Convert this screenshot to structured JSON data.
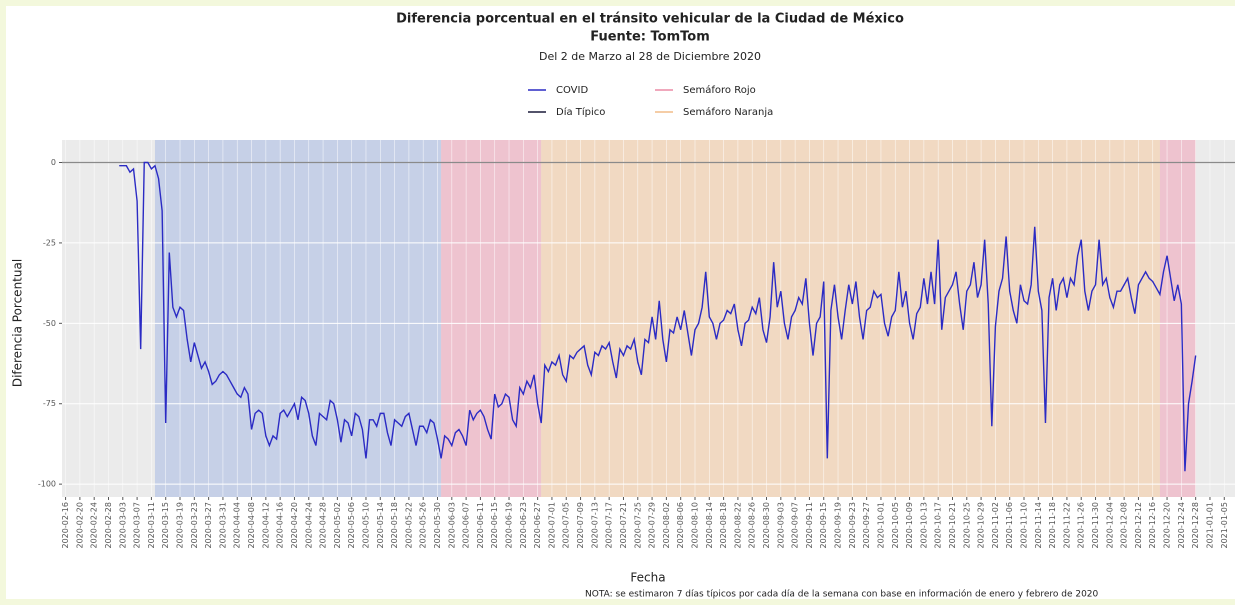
{
  "chart_data": {
    "type": "line",
    "title": "Diferencia porcentual en el tránsito vehicular de la Ciudad de México",
    "subtitle": "Fuente: TomTom",
    "caption": "Del 2 de Marzo al 28 de Diciembre 2020",
    "x_label": "Fecha",
    "y_label": "Diferencia Porcentual",
    "note": "NOTA: se estimaron 7 días típicos por cada día de la semana con base en información de enero y febrero de 2020",
    "xlim": [
      "2020-02-15",
      "2021-01-08"
    ],
    "ylim": [
      -104,
      7
    ],
    "yticks": [
      0,
      -25,
      -50,
      -75,
      -100
    ],
    "xticks": [
      "2020-02-16",
      "2020-02-20",
      "2020-02-24",
      "2020-02-28",
      "2020-03-03",
      "2020-03-07",
      "2020-03-11",
      "2020-03-15",
      "2020-03-19",
      "2020-03-23",
      "2020-03-27",
      "2020-03-31",
      "2020-04-04",
      "2020-04-08",
      "2020-04-12",
      "2020-04-16",
      "2020-04-20",
      "2020-04-24",
      "2020-04-28",
      "2020-05-02",
      "2020-05-06",
      "2020-05-10",
      "2020-05-14",
      "2020-05-18",
      "2020-05-22",
      "2020-05-26",
      "2020-05-30",
      "2020-06-03",
      "2020-06-07",
      "2020-06-11",
      "2020-06-15",
      "2020-06-19",
      "2020-06-23",
      "2020-06-27",
      "2020-07-01",
      "2020-07-05",
      "2020-07-09",
      "2020-07-13",
      "2020-07-17",
      "2020-07-21",
      "2020-07-25",
      "2020-07-29",
      "2020-08-02",
      "2020-08-06",
      "2020-08-10",
      "2020-08-14",
      "2020-08-18",
      "2020-08-22",
      "2020-08-26",
      "2020-08-30",
      "2020-09-03",
      "2020-09-07",
      "2020-09-11",
      "2020-09-15",
      "2020-09-19",
      "2020-09-23",
      "2020-09-27",
      "2020-10-01",
      "2020-10-05",
      "2020-10-09",
      "2020-10-13",
      "2020-10-17",
      "2020-10-21",
      "2020-10-25",
      "2020-10-29",
      "2020-11-02",
      "2020-11-06",
      "2020-11-10",
      "2020-11-14",
      "2020-11-18",
      "2020-11-22",
      "2020-11-26",
      "2020-11-30",
      "2020-12-04",
      "2020-12-08",
      "2020-12-12",
      "2020-12-16",
      "2020-12-20",
      "2020-12-24",
      "2020-12-28",
      "2021-01-01",
      "2021-01-05"
    ],
    "grid": true,
    "shaded_span": {
      "color": "#b9c7e6",
      "start": "2020-03-12",
      "end": "2020-05-31"
    },
    "regions": [
      {
        "name": "Semáforo Rojo",
        "color": "#f0a8bc",
        "spans": [
          [
            "2020-05-31",
            "2020-06-28"
          ],
          [
            "2020-12-18",
            "2020-12-28"
          ]
        ]
      },
      {
        "name": "Semáforo Naranja",
        "color": "#f5cda6",
        "spans": [
          [
            "2020-06-28",
            "2020-12-18"
          ]
        ]
      }
    ],
    "series": [
      {
        "name": "COVID",
        "color": "#2b2bc4",
        "x": [
          "2020-03-02",
          "2020-03-03",
          "2020-03-04",
          "2020-03-05",
          "2020-03-06",
          "2020-03-07",
          "2020-03-08",
          "2020-03-09",
          "2020-03-10",
          "2020-03-11",
          "2020-03-12",
          "2020-03-13",
          "2020-03-14",
          "2020-03-15",
          "2020-03-16",
          "2020-03-17",
          "2020-03-18",
          "2020-03-19",
          "2020-03-20",
          "2020-03-21",
          "2020-03-22",
          "2020-03-23",
          "2020-03-24",
          "2020-03-25",
          "2020-03-26",
          "2020-03-27",
          "2020-03-28",
          "2020-03-29",
          "2020-03-30",
          "2020-03-31",
          "2020-04-01",
          "2020-04-02",
          "2020-04-03",
          "2020-04-04",
          "2020-04-05",
          "2020-04-06",
          "2020-04-07",
          "2020-04-08",
          "2020-04-09",
          "2020-04-10",
          "2020-04-11",
          "2020-04-12",
          "2020-04-13",
          "2020-04-14",
          "2020-04-15",
          "2020-04-16",
          "2020-04-17",
          "2020-04-18",
          "2020-04-19",
          "2020-04-20",
          "2020-04-21",
          "2020-04-22",
          "2020-04-23",
          "2020-04-24",
          "2020-04-25",
          "2020-04-26",
          "2020-04-27",
          "2020-04-28",
          "2020-04-29",
          "2020-04-30",
          "2020-05-01",
          "2020-05-02",
          "2020-05-03",
          "2020-05-04",
          "2020-05-05",
          "2020-05-06",
          "2020-05-07",
          "2020-05-08",
          "2020-05-09",
          "2020-05-10",
          "2020-05-11",
          "2020-05-12",
          "2020-05-13",
          "2020-05-14",
          "2020-05-15",
          "2020-05-16",
          "2020-05-17",
          "2020-05-18",
          "2020-05-19",
          "2020-05-20",
          "2020-05-21",
          "2020-05-22",
          "2020-05-23",
          "2020-05-24",
          "2020-05-25",
          "2020-05-26",
          "2020-05-27",
          "2020-05-28",
          "2020-05-29",
          "2020-05-30",
          "2020-05-31",
          "2020-06-01",
          "2020-06-02",
          "2020-06-03",
          "2020-06-04",
          "2020-06-05",
          "2020-06-06",
          "2020-06-07",
          "2020-06-08",
          "2020-06-09",
          "2020-06-10",
          "2020-06-11",
          "2020-06-12",
          "2020-06-13",
          "2020-06-14",
          "2020-06-15",
          "2020-06-16",
          "2020-06-17",
          "2020-06-18",
          "2020-06-19",
          "2020-06-20",
          "2020-06-21",
          "2020-06-22",
          "2020-06-23",
          "2020-06-24",
          "2020-06-25",
          "2020-06-26",
          "2020-06-27",
          "2020-06-28",
          "2020-06-29",
          "2020-06-30",
          "2020-07-01",
          "2020-07-02",
          "2020-07-03",
          "2020-07-04",
          "2020-07-05",
          "2020-07-06",
          "2020-07-07",
          "2020-07-08",
          "2020-07-09",
          "2020-07-10",
          "2020-07-11",
          "2020-07-12",
          "2020-07-13",
          "2020-07-14",
          "2020-07-15",
          "2020-07-16",
          "2020-07-17",
          "2020-07-18",
          "2020-07-19",
          "2020-07-20",
          "2020-07-21",
          "2020-07-22",
          "2020-07-23",
          "2020-07-24",
          "2020-07-25",
          "2020-07-26",
          "2020-07-27",
          "2020-07-28",
          "2020-07-29",
          "2020-07-30",
          "2020-07-31",
          "2020-08-01",
          "2020-08-02",
          "2020-08-03",
          "2020-08-04",
          "2020-08-05",
          "2020-08-06",
          "2020-08-07",
          "2020-08-08",
          "2020-08-09",
          "2020-08-10",
          "2020-08-11",
          "2020-08-12",
          "2020-08-13",
          "2020-08-14",
          "2020-08-15",
          "2020-08-16",
          "2020-08-17",
          "2020-08-18",
          "2020-08-19",
          "2020-08-20",
          "2020-08-21",
          "2020-08-22",
          "2020-08-23",
          "2020-08-24",
          "2020-08-25",
          "2020-08-26",
          "2020-08-27",
          "2020-08-28",
          "2020-08-29",
          "2020-08-30",
          "2020-08-31",
          "2020-09-01",
          "2020-09-02",
          "2020-09-03",
          "2020-09-04",
          "2020-09-05",
          "2020-09-06",
          "2020-09-07",
          "2020-09-08",
          "2020-09-09",
          "2020-09-10",
          "2020-09-11",
          "2020-09-12",
          "2020-09-13",
          "2020-09-14",
          "2020-09-15",
          "2020-09-16",
          "2020-09-17",
          "2020-09-18",
          "2020-09-19",
          "2020-09-20",
          "2020-09-21",
          "2020-09-22",
          "2020-09-23",
          "2020-09-24",
          "2020-09-25",
          "2020-09-26",
          "2020-09-27",
          "2020-09-28",
          "2020-09-29",
          "2020-09-30",
          "2020-10-01",
          "2020-10-02",
          "2020-10-03",
          "2020-10-04",
          "2020-10-05",
          "2020-10-06",
          "2020-10-07",
          "2020-10-08",
          "2020-10-09",
          "2020-10-10",
          "2020-10-11",
          "2020-10-12",
          "2020-10-13",
          "2020-10-14",
          "2020-10-15",
          "2020-10-16",
          "2020-10-17",
          "2020-10-18",
          "2020-10-19",
          "2020-10-20",
          "2020-10-21",
          "2020-10-22",
          "2020-10-23",
          "2020-10-24",
          "2020-10-25",
          "2020-10-26",
          "2020-10-27",
          "2020-10-28",
          "2020-10-29",
          "2020-10-30",
          "2020-10-31",
          "2020-11-01",
          "2020-11-02",
          "2020-11-03",
          "2020-11-04",
          "2020-11-05",
          "2020-11-06",
          "2020-11-07",
          "2020-11-08",
          "2020-11-09",
          "2020-11-10",
          "2020-11-11",
          "2020-11-12",
          "2020-11-13",
          "2020-11-14",
          "2020-11-15",
          "2020-11-16",
          "2020-11-17",
          "2020-11-18",
          "2020-11-19",
          "2020-11-20",
          "2020-11-21",
          "2020-11-22",
          "2020-11-23",
          "2020-11-24",
          "2020-11-25",
          "2020-11-26",
          "2020-11-27",
          "2020-11-28",
          "2020-11-29",
          "2020-11-30",
          "2020-12-01",
          "2020-12-02",
          "2020-12-03",
          "2020-12-04",
          "2020-12-05",
          "2020-12-06",
          "2020-12-07",
          "2020-12-08",
          "2020-12-09",
          "2020-12-10",
          "2020-12-11",
          "2020-12-12",
          "2020-12-13",
          "2020-12-14",
          "2020-12-15",
          "2020-12-16",
          "2020-12-17",
          "2020-12-18",
          "2020-12-19",
          "2020-12-20",
          "2020-12-21",
          "2020-12-22",
          "2020-12-23",
          "2020-12-24",
          "2020-12-25",
          "2020-12-26",
          "2020-12-27",
          "2020-12-28"
        ],
        "values": [
          -1,
          -1,
          -1,
          -3,
          -2,
          -12,
          -58,
          0,
          0,
          -2,
          -1,
          -5,
          -15,
          -81,
          -28,
          -45,
          -48,
          -45,
          -46,
          -55,
          -62,
          -56,
          -60,
          -64,
          -62,
          -65,
          -69,
          -68,
          -66,
          -65,
          -66,
          -68,
          -70,
          -72,
          -73,
          -70,
          -72,
          -83,
          -78,
          -77,
          -78,
          -85,
          -88,
          -85,
          -86,
          -78,
          -77,
          -79,
          -77,
          -75,
          -80,
          -73,
          -74,
          -78,
          -85,
          -88,
          -78,
          -79,
          -80,
          -74,
          -75,
          -80,
          -87,
          -80,
          -81,
          -85,
          -78,
          -79,
          -83,
          -92,
          -80,
          -80,
          -82,
          -78,
          -78,
          -84,
          -88,
          -80,
          -81,
          -82,
          -79,
          -78,
          -83,
          -88,
          -82,
          -82,
          -84,
          -80,
          -81,
          -86,
          -92,
          -85,
          -86,
          -88,
          -84,
          -83,
          -85,
          -88,
          -77,
          -80,
          -78,
          -77,
          -79,
          -83,
          -86,
          -72,
          -76,
          -75,
          -72,
          -73,
          -80,
          -82,
          -70,
          -72,
          -68,
          -70,
          -66,
          -75,
          -81,
          -63,
          -65,
          -62,
          -63,
          -60,
          -66,
          -68,
          -60,
          -61,
          -59,
          -58,
          -57,
          -63,
          -66,
          -59,
          -60,
          -57,
          -58,
          -56,
          -62,
          -67,
          -58,
          -60,
          -57,
          -58,
          -55,
          -62,
          -66,
          -55,
          -56,
          -48,
          -55,
          -43,
          -55,
          -62,
          -52,
          -53,
          -48,
          -52,
          -46,
          -53,
          -60,
          -52,
          -50,
          -45,
          -34,
          -48,
          -50,
          -55,
          -50,
          -49,
          -46,
          -47,
          -44,
          -52,
          -57,
          -50,
          -49,
          -45,
          -47,
          -42,
          -52,
          -56,
          -48,
          -31,
          -45,
          -40,
          -50,
          -55,
          -48,
          -46,
          -42,
          -44,
          -36,
          -50,
          -60,
          -50,
          -48,
          -37,
          -92,
          -46,
          -38,
          -48,
          -55,
          -46,
          -38,
          -44,
          -37,
          -48,
          -55,
          -46,
          -45,
          -40,
          -42,
          -41,
          -50,
          -54,
          -48,
          -46,
          -34,
          -45,
          -40,
          -50,
          -55,
          -47,
          -45,
          -36,
          -44,
          -34,
          -44,
          -24,
          -52,
          -42,
          -40,
          -38,
          -34,
          -44,
          -52,
          -40,
          -38,
          -31,
          -42,
          -38,
          -24,
          -44,
          -82,
          -51,
          -40,
          -36,
          -23,
          -40,
          -46,
          -50,
          -38,
          -43,
          -44,
          -38,
          -20,
          -40,
          -46,
          -81,
          -42,
          -36,
          -46,
          -38,
          -36,
          -42,
          -36,
          -38,
          -29,
          -24,
          -40,
          -46,
          -40,
          -38,
          -24,
          -38,
          -36,
          -42,
          -45,
          -40,
          -40,
          -38,
          -36,
          -42,
          -47,
          -38,
          -36,
          -34,
          -36,
          -37,
          -39,
          -41,
          -34,
          -29,
          -36,
          -43,
          -38,
          -44,
          -96,
          -75,
          -68,
          -60
        ]
      },
      {
        "name": "Día Típico",
        "color": "#8a8a8a",
        "x": [
          "2020-02-15",
          "2021-01-08"
        ],
        "values": [
          0,
          0
        ]
      }
    ]
  }
}
